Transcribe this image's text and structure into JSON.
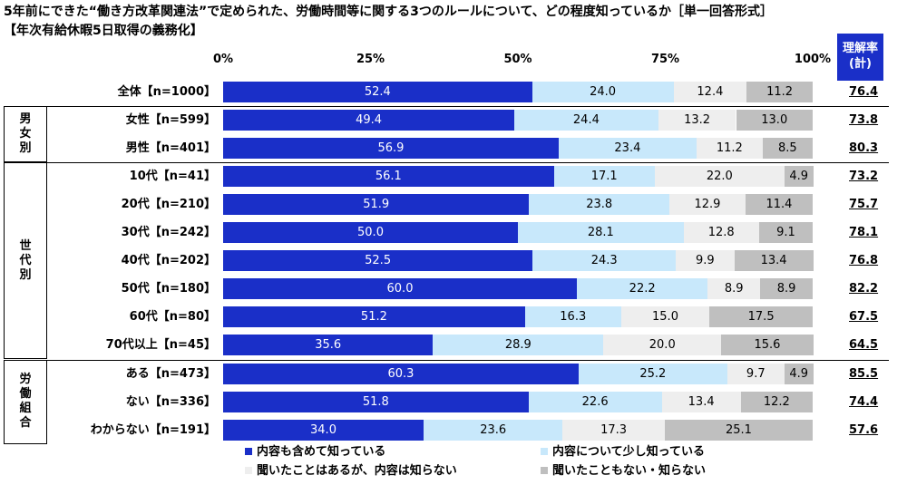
{
  "title": "5年前にできた“働き方改革関連法”で定められた、労働時間等に関する3つのルールについて、どの程度知っているか［単一回答形式］",
  "subtitle": "【年次有給休暇5日取得の義務化】",
  "rate_header": [
    "理解率",
    "(計)"
  ],
  "chart_data": {
    "type": "bar",
    "stacked": true,
    "orientation": "horizontal",
    "x_ticks": [
      "0%",
      "25%",
      "50%",
      "75%",
      "100%"
    ],
    "xlim": [
      0,
      100
    ],
    "colors": [
      "#1a2fc8",
      "#c8e8fb",
      "#eeeeee",
      "#bfbfbf"
    ],
    "text_colors": [
      "#ffffff",
      "#000000",
      "#000000",
      "#000000"
    ],
    "series": [
      {
        "name": "内容も含めて知っている"
      },
      {
        "name": "内容について少し知っている"
      },
      {
        "name": "聞いたことはあるが、内容は知らない"
      },
      {
        "name": "聞いたこともない・知らない"
      }
    ],
    "rows": [
      {
        "label": "全体【n=1000】",
        "values": [
          52.4,
          24.0,
          12.4,
          11.2
        ],
        "rate": "76.4"
      },
      {
        "label": "女性【n=599】",
        "values": [
          49.4,
          24.4,
          13.2,
          13.0
        ],
        "rate": "73.8"
      },
      {
        "label": "男性【n=401】",
        "values": [
          56.9,
          23.4,
          11.2,
          8.5
        ],
        "rate": "80.3"
      },
      {
        "label": "10代【n=41】",
        "values": [
          56.1,
          17.1,
          22.0,
          4.9
        ],
        "rate": "73.2"
      },
      {
        "label": "20代【n=210】",
        "values": [
          51.9,
          23.8,
          12.9,
          11.4
        ],
        "rate": "75.7"
      },
      {
        "label": "30代【n=242】",
        "values": [
          50.0,
          28.1,
          12.8,
          9.1
        ],
        "rate": "78.1"
      },
      {
        "label": "40代【n=202】",
        "values": [
          52.5,
          24.3,
          9.9,
          13.4
        ],
        "rate": "76.8"
      },
      {
        "label": "50代【n=180】",
        "values": [
          60.0,
          22.2,
          8.9,
          8.9
        ],
        "rate": "82.2"
      },
      {
        "label": "60代【n=80】",
        "values": [
          51.2,
          16.3,
          15.0,
          17.5
        ],
        "rate": "67.5"
      },
      {
        "label": "70代以上【n=45】",
        "values": [
          35.6,
          28.9,
          20.0,
          15.6
        ],
        "rate": "64.5"
      },
      {
        "label": "ある【n=473】",
        "values": [
          60.3,
          25.2,
          9.7,
          4.9
        ],
        "rate": "85.5"
      },
      {
        "label": "ない【n=336】",
        "values": [
          51.8,
          22.6,
          13.4,
          12.2
        ],
        "rate": "74.4"
      },
      {
        "label": "わからない【n=191】",
        "values": [
          34.0,
          23.6,
          17.3,
          25.1
        ],
        "rate": "57.6"
      }
    ],
    "groups": [
      {
        "label": [
          "男",
          "女",
          "別"
        ],
        "first_row": 1,
        "last_row": 2
      },
      {
        "label": [
          "世",
          "代",
          "別"
        ],
        "first_row": 3,
        "last_row": 9
      },
      {
        "label": [
          "労",
          "働",
          "組",
          "合"
        ],
        "first_row": 10,
        "last_row": 12
      }
    ]
  }
}
